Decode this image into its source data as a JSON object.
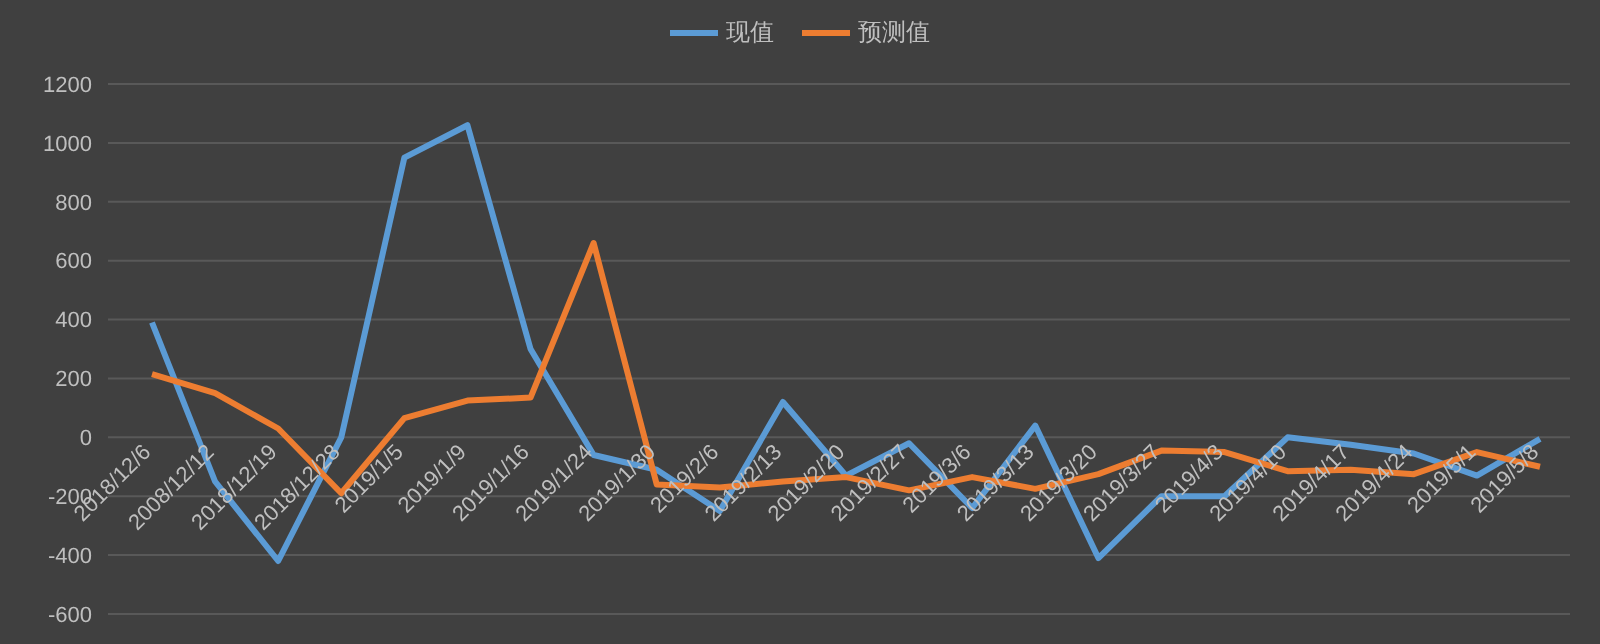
{
  "chart_data": {
    "type": "line",
    "categories": [
      "2018/12/6",
      "2008/12/12",
      "2018/12/19",
      "2018/12/28",
      "2019/1/5",
      "2019/1/9",
      "2019/1/16",
      "2019/1/24",
      "2019/1/30",
      "2019/2/6",
      "2019/2/13",
      "2019/2/20",
      "2019/2/27",
      "2019/3/6",
      "2019/3/13",
      "2019/3/20",
      "2019/3/27",
      "2019/4/3",
      "2019/4/10",
      "2019/4/17",
      "2019/4/24",
      "2019/5/1",
      "2019/5/8"
    ],
    "series": [
      {
        "name": "现值",
        "color": "#5b9bd5",
        "values": [
          390,
          -150,
          -420,
          0,
          950,
          1060,
          300,
          -60,
          -110,
          -250,
          120,
          -130,
          -20,
          -240,
          40,
          -410,
          -200,
          -200,
          0,
          -25,
          -55,
          -130,
          -5
        ]
      },
      {
        "name": "预测值",
        "color": "#ed7d31",
        "values": [
          215,
          150,
          30,
          -190,
          65,
          125,
          135,
          660,
          -160,
          -170,
          -150,
          -135,
          -180,
          -135,
          -175,
          -125,
          -45,
          -50,
          -115,
          -110,
          -125,
          -50,
          -100
        ]
      }
    ],
    "ylim": [
      -600,
      1200
    ],
    "yticks": [
      -600,
      -400,
      -200,
      0,
      200,
      400,
      600,
      800,
      1000,
      1200
    ],
    "grid": "y",
    "legend": "top",
    "marker": "none",
    "line_style": "solid"
  }
}
